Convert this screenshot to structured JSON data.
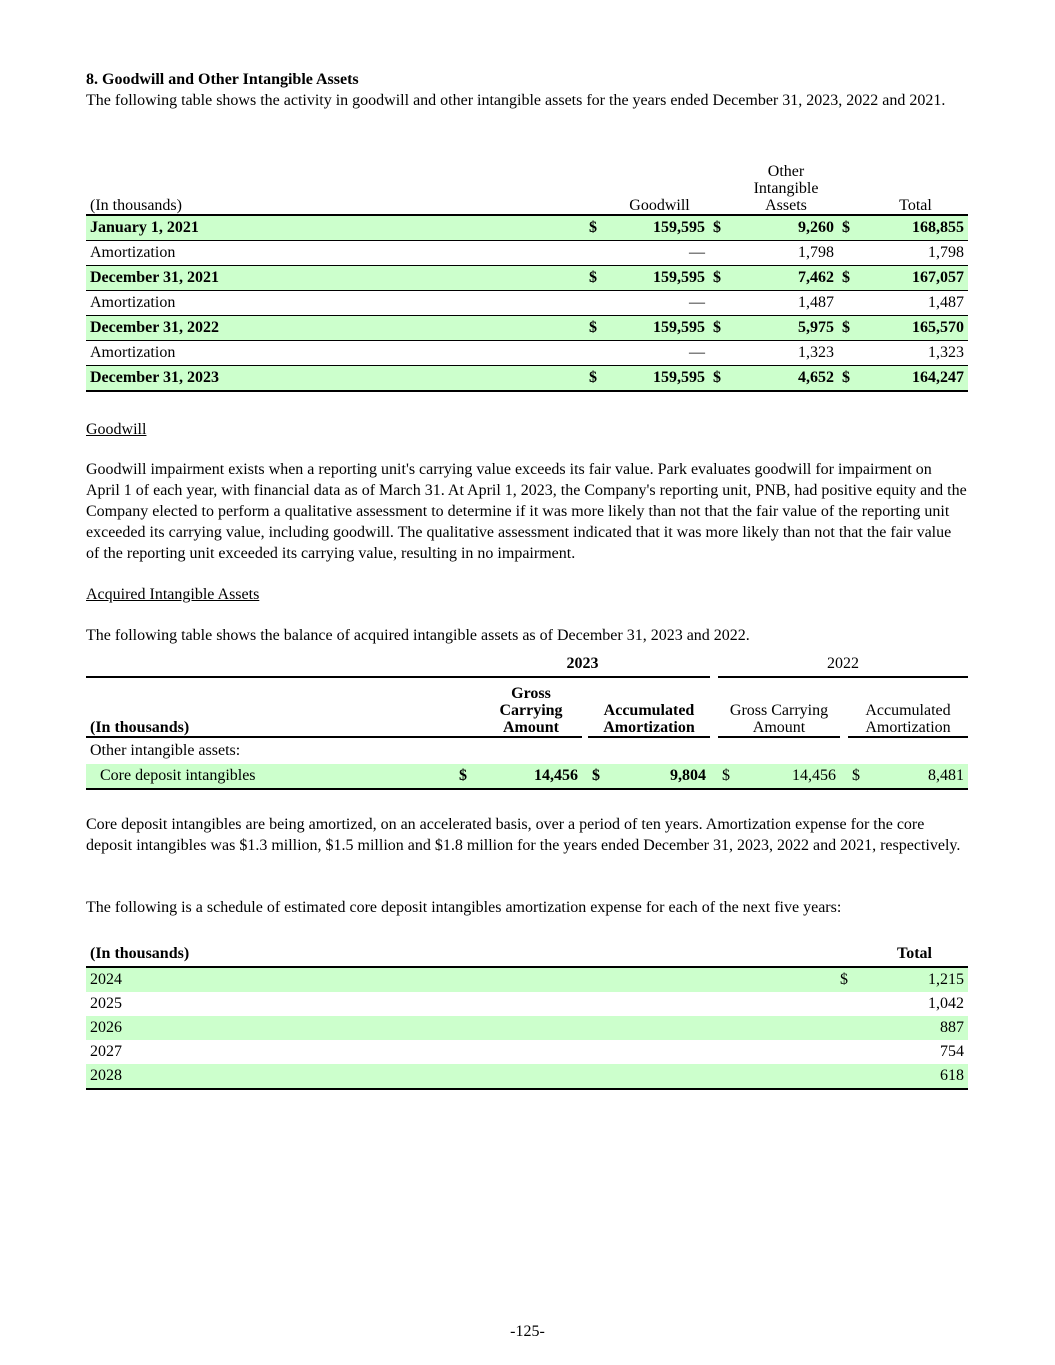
{
  "section_title": "8.  Goodwill and Other Intangible Assets",
  "intro": "The following table shows the activity in goodwill and other intangible assets for the years ended December 31, 2023, 2022 and 2021.",
  "table1": {
    "headers": {
      "label": "(In thousands)",
      "goodwill": "Goodwill",
      "other": "Other Intangible Assets",
      "total": "Total"
    },
    "rows": [
      {
        "label": "January 1, 2021",
        "bold": true,
        "cur": "$",
        "goodwill": "159,595",
        "other": "9,260",
        "total": "168,855"
      },
      {
        "label": "Amortization",
        "bold": false,
        "cur": "",
        "goodwill": "—",
        "other": "1,798",
        "total": "1,798"
      },
      {
        "label": "December 31, 2021",
        "bold": true,
        "cur": "$",
        "goodwill": "159,595",
        "other": "7,462",
        "total": "167,057"
      },
      {
        "label": "Amortization",
        "bold": false,
        "cur": "",
        "goodwill": "—",
        "other": "1,487",
        "total": "1,487"
      },
      {
        "label": "December 31, 2022",
        "bold": true,
        "cur": "$",
        "goodwill": "159,595",
        "other": "5,975",
        "total": "165,570"
      },
      {
        "label": "Amortization",
        "bold": false,
        "cur": "",
        "goodwill": "—",
        "other": "1,323",
        "total": "1,323"
      },
      {
        "label": "December 31, 2023",
        "bold": true,
        "cur": "$",
        "goodwill": "159,595",
        "other": "4,652",
        "total": "164,247"
      }
    ]
  },
  "goodwill_heading": "Goodwill",
  "goodwill_text": "Goodwill impairment exists when a reporting unit's carrying value exceeds its fair value.  Park evaluates goodwill for impairment on April 1 of each year, with financial data as of March 31. At April 1, 2023, the Company's reporting unit, PNB, had positive equity and the Company elected to perform a qualitative assessment to determine if it was more likely than not that the fair value of the reporting unit exceeded its carrying value, including goodwill. The qualitative assessment indicated that it was more likely than not that the fair value of the reporting unit exceeded its carrying value, resulting in no impairment.",
  "acquired_heading": "Acquired Intangible Assets",
  "acquired_intro": "The following table shows the balance of acquired intangible assets as of December 31, 2023 and 2022.",
  "table2": {
    "year1": "2023",
    "year2": "2022",
    "label": "(In thousands)",
    "gross": "Gross Carrying Amount",
    "accum": "Accumulated Amortization",
    "group": "Other intangible assets:",
    "row": {
      "label": "Core deposit intangibles",
      "cur": "$",
      "gross_2023": "14,456",
      "accum_2023": "9,804",
      "gross_2022": "14,456",
      "accum_2022": "8,481"
    }
  },
  "core_text": "Core deposit intangibles are being amortized, on an accelerated basis, over a period of ten years. Amortization expense for the core deposit intangibles was $1.3 million, $1.5 million and $1.8 million for the years ended December 31, 2023, 2022 and 2021, respectively.",
  "schedule_intro": "The following is a schedule of estimated core deposit intangibles amortization expense for each of the next five years:",
  "table3": {
    "label": "(In thousands)",
    "total": "Total",
    "rows": [
      {
        "year": "2024",
        "cur": "$",
        "value": "1,215"
      },
      {
        "year": "2025",
        "cur": "",
        "value": "1,042"
      },
      {
        "year": "2026",
        "cur": "",
        "value": "887"
      },
      {
        "year": "2027",
        "cur": "",
        "value": "754"
      },
      {
        "year": "2028",
        "cur": "",
        "value": "618"
      }
    ]
  },
  "page_number": "-125-",
  "colors": {
    "row_highlight": "#ccffcc"
  }
}
